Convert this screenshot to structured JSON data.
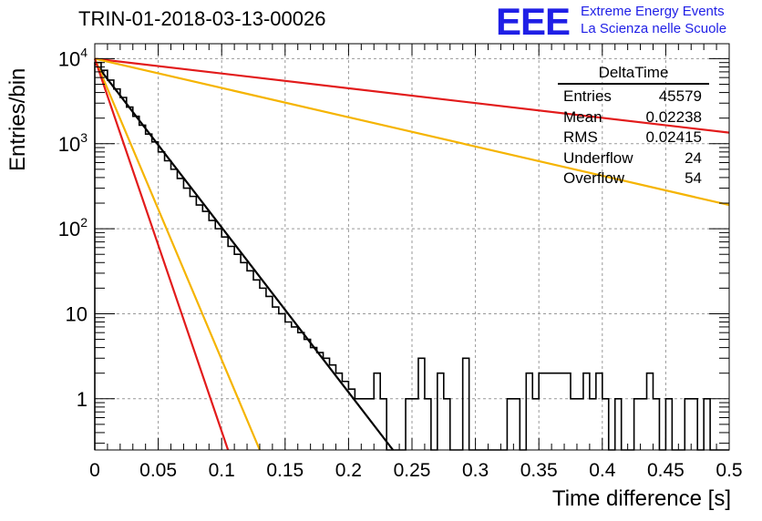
{
  "header": {
    "title": "TRIN-01-2018-03-13-00026"
  },
  "logo": {
    "mark": "EEE",
    "line1": "Extreme Energy Events",
    "line2": "La Scienza nelle Scuole",
    "color": "#1f1fe6"
  },
  "stats_box": {
    "title": "DeltaTime",
    "rows": [
      {
        "label": "Entries",
        "value": "45579"
      },
      {
        "label": "Mean",
        "value": "0.02238"
      },
      {
        "label": "RMS",
        "value": "0.02415"
      },
      {
        "label": "Underflow",
        "value": "24"
      },
      {
        "label": "Overflow",
        "value": "54"
      }
    ]
  },
  "chart_data": {
    "type": "line",
    "xlabel": "Time difference [s]",
    "ylabel": "Entries/bin",
    "xlim": [
      0,
      0.5
    ],
    "ylim": [
      0.25,
      15000
    ],
    "yscale": "log",
    "grid": true,
    "x_ticks": [
      "0",
      "0.05",
      "0.1",
      "0.15",
      "0.2",
      "0.25",
      "0.3",
      "0.35",
      "0.4",
      "0.45",
      "0.5"
    ],
    "y_ticks": [
      "1",
      "10",
      "10^2",
      "10^3",
      "10^4"
    ],
    "histogram": {
      "bin_width": 0.005,
      "color": "#000000",
      "values": [
        9000,
        7300,
        5600,
        4400,
        3500,
        2700,
        2100,
        1650,
        1300,
        1050,
        800,
        630,
        500,
        390,
        300,
        240,
        190,
        160,
        125,
        100,
        80,
        62,
        50,
        40,
        32,
        25,
        20,
        16,
        12,
        10,
        8,
        7,
        6,
        5,
        4,
        3.5,
        3,
        2.5,
        2,
        1.6,
        1.3,
        1,
        1,
        1,
        2,
        1,
        0,
        0,
        0,
        1,
        1,
        3,
        1,
        0,
        2,
        1,
        0,
        0,
        3,
        0,
        0,
        0,
        0,
        0,
        0,
        1,
        1,
        0,
        2,
        1,
        2,
        2,
        2,
        2,
        2,
        1,
        1,
        2,
        1,
        2,
        1,
        0,
        1,
        0,
        0,
        1,
        1,
        2,
        1,
        0,
        1,
        0,
        0,
        1,
        1,
        0,
        1,
        0,
        0,
        0
      ]
    },
    "series": [
      {
        "color": "#000000",
        "x": [
          0,
          0.235
        ],
        "y": [
          9000,
          0.25
        ]
      },
      {
        "color": "#e21b1b",
        "x": [
          0,
          0.5
        ],
        "y": [
          10000,
          1350
        ]
      },
      {
        "color": "#f5b400",
        "x": [
          0,
          0.5
        ],
        "y": [
          10000,
          190
        ]
      },
      {
        "color": "#f5b400",
        "x": [
          0,
          0.13
        ],
        "y": [
          10000,
          0.25
        ]
      },
      {
        "color": "#e21b1b",
        "x": [
          0,
          0.105
        ],
        "y": [
          10000,
          0.25
        ]
      }
    ]
  }
}
